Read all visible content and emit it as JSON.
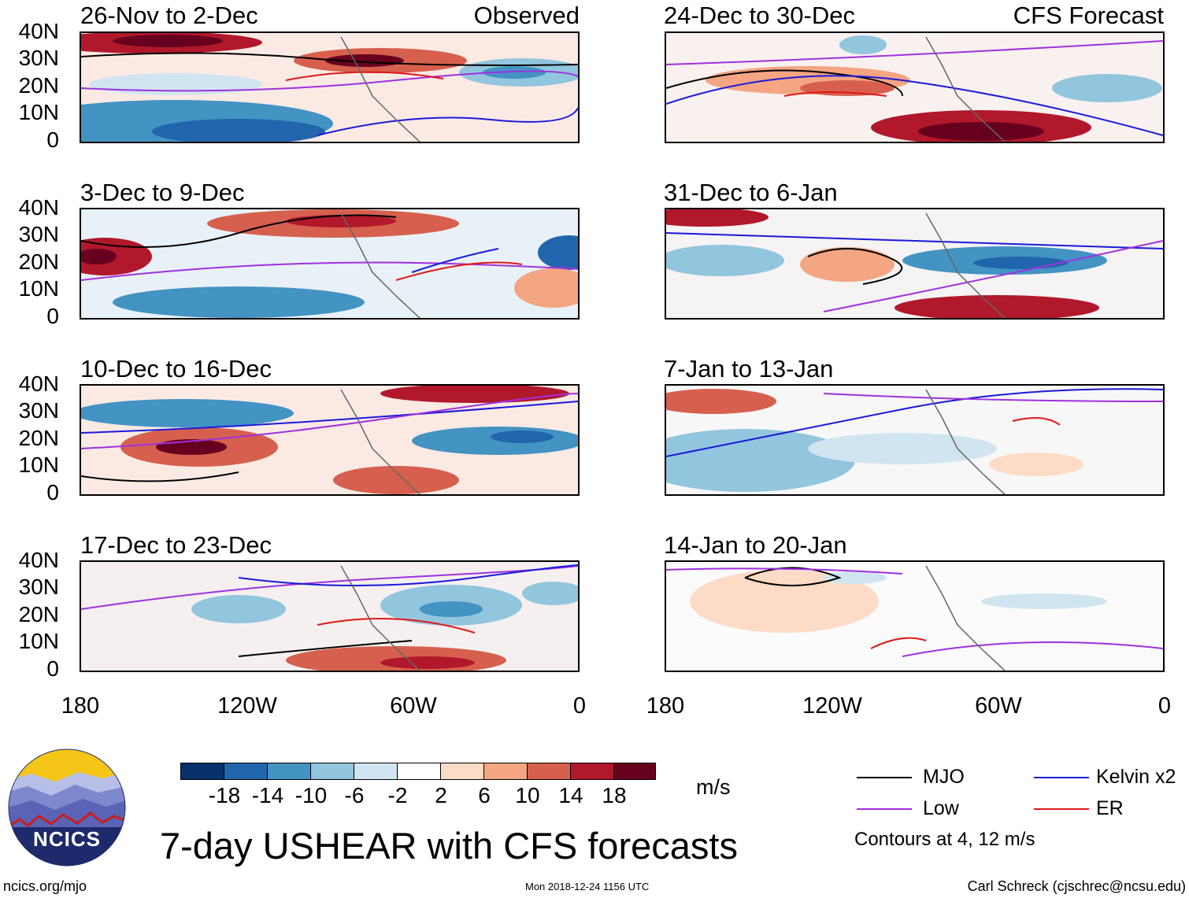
{
  "panels": {
    "left": [
      {
        "title": "26-Nov to 2-Dec",
        "tag": "Observed"
      },
      {
        "title": "3-Dec to 9-Dec",
        "tag": ""
      },
      {
        "title": "10-Dec to 16-Dec",
        "tag": ""
      },
      {
        "title": "17-Dec to 23-Dec",
        "tag": ""
      }
    ],
    "right": [
      {
        "title": "24-Dec to 30-Dec",
        "tag": "CFS Forecast"
      },
      {
        "title": "31-Dec to 6-Jan",
        "tag": ""
      },
      {
        "title": "7-Jan to 13-Jan",
        "tag": ""
      },
      {
        "title": "14-Jan to 20-Jan",
        "tag": ""
      }
    ]
  },
  "axes": {
    "y_labels": [
      "40N",
      "30N",
      "20N",
      "10N",
      "0"
    ],
    "x_labels": [
      "180",
      "120W",
      "60W",
      "0"
    ]
  },
  "colorbar": {
    "labels": [
      "-18",
      "-14",
      "-10",
      "-6",
      "-2",
      "2",
      "6",
      "10",
      "14",
      "18"
    ],
    "colors": [
      "#08306b",
      "#2166ac",
      "#4393c3",
      "#92c5de",
      "#d1e5f0",
      "#ffffff",
      "#fddbc7",
      "#f4a582",
      "#d6604d",
      "#b2182b",
      "#67001f"
    ],
    "units": "m/s"
  },
  "legend": {
    "items": [
      {
        "label": "MJO",
        "color": "#000000"
      },
      {
        "label": "Kelvin x2",
        "color": "#1a1adb"
      },
      {
        "label": "Low",
        "color": "#a030e0"
      },
      {
        "label": "ER",
        "color": "#e01818"
      }
    ],
    "note": "Contours at 4, 12 m/s"
  },
  "logo": {
    "text": "NCICS"
  },
  "main_title": "7-day USHEAR with CFS forecasts",
  "footer": {
    "left": "ncics.org/mjo",
    "center": "Mon 2018-12-24 1156 UTC",
    "right": "Carl Schreck (cjschrec@ncsu.edu)"
  }
}
